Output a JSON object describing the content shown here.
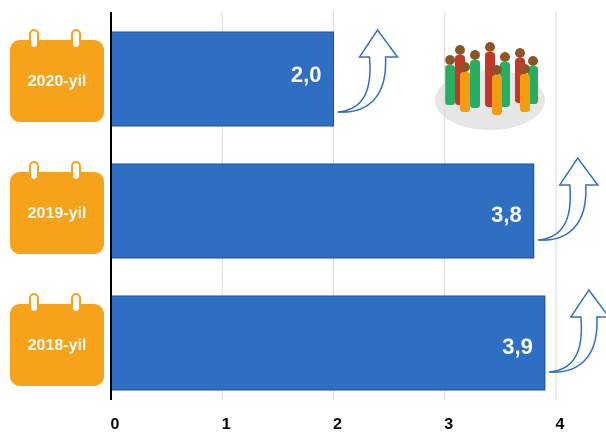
{
  "chart_data": {
    "type": "bar",
    "orientation": "horizontal",
    "categories": [
      "2020-yil",
      "2019-yil",
      "2018-yil"
    ],
    "values": [
      2.0,
      3.8,
      3.9
    ],
    "value_labels": [
      "2,0",
      "3,8",
      "3,9"
    ],
    "color": "#2e6fc4",
    "xlim": [
      0,
      4
    ],
    "xticks": [
      0,
      1,
      2,
      3,
      4
    ],
    "grid": true
  }
}
